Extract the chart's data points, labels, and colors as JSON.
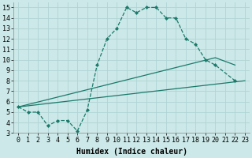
{
  "xlabel": "Humidex (Indice chaleur)",
  "bg_color": "#cce8e8",
  "grid_color": "#b0d4d4",
  "line_color": "#1a7a6a",
  "xlim": [
    -0.5,
    23.5
  ],
  "ylim": [
    3,
    15.5
  ],
  "xticks": [
    0,
    1,
    2,
    3,
    4,
    5,
    6,
    7,
    8,
    9,
    10,
    11,
    12,
    13,
    14,
    15,
    16,
    17,
    18,
    19,
    20,
    21,
    22,
    23
  ],
  "yticks": [
    3,
    4,
    5,
    6,
    7,
    8,
    9,
    10,
    11,
    12,
    13,
    14,
    15
  ],
  "line1_x": [
    0,
    1,
    2,
    3,
    4,
    5,
    6,
    7,
    8,
    9,
    10,
    11,
    12,
    13,
    14,
    15,
    16,
    17,
    18,
    19,
    20,
    22
  ],
  "line1_y": [
    5.5,
    5.0,
    5.0,
    3.7,
    4.2,
    4.2,
    3.2,
    5.2,
    9.5,
    12.0,
    13.0,
    15.0,
    14.5,
    15.0,
    15.0,
    14.0,
    14.0,
    12.0,
    11.5,
    10.0,
    9.5,
    8.0
  ],
  "line2_x": [
    0,
    23
  ],
  "line2_y": [
    5.5,
    8.0
  ],
  "line3_x": [
    0,
    20,
    22
  ],
  "line3_y": [
    5.5,
    10.2,
    9.5
  ],
  "tick_fontsize": 6,
  "xlabel_fontsize": 7
}
